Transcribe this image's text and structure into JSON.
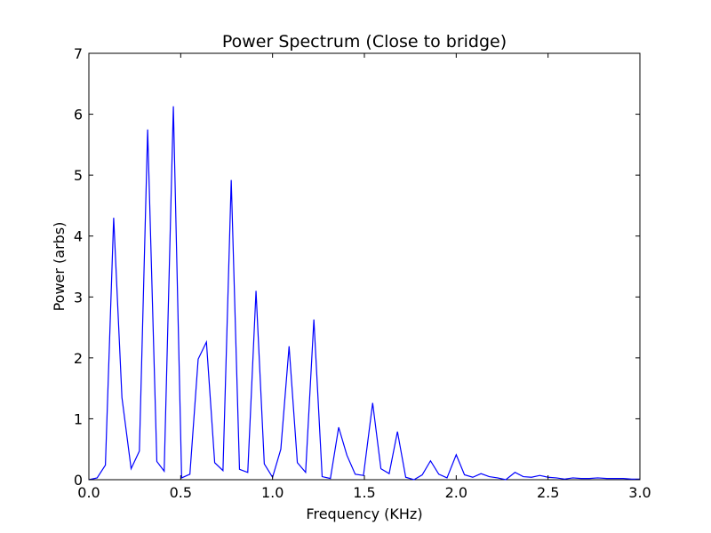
{
  "chart_data": {
    "type": "line",
    "title": "Power Spectrum (Close to bridge)",
    "xlabel": "Frequency (KHz)",
    "ylabel": "Power (arbs)",
    "xlim": [
      0,
      3.0
    ],
    "ylim": [
      0,
      7
    ],
    "xticks": [
      "0.0",
      "0.5",
      "1.0",
      "1.5",
      "2.0",
      "2.5",
      "3.0"
    ],
    "yticks": [
      "0",
      "1",
      "2",
      "3",
      "4",
      "5",
      "6",
      "7"
    ],
    "grid": false,
    "legend": "none",
    "line_color": "#0000ff",
    "series": [
      {
        "x": [
          0.0,
          0.045,
          0.09,
          0.135,
          0.18,
          0.23,
          0.275,
          0.32,
          0.37,
          0.41,
          0.46,
          0.505,
          0.55,
          0.595,
          0.64,
          0.685,
          0.73,
          0.775,
          0.82,
          0.865,
          0.91,
          0.955,
          1.0,
          1.045,
          1.09,
          1.135,
          1.18,
          1.225,
          1.27,
          1.315,
          1.36,
          1.405,
          1.45,
          1.495,
          1.545,
          1.59,
          1.635,
          1.68,
          1.725,
          1.77,
          1.815,
          1.86,
          1.905,
          1.95,
          2.0,
          2.045,
          2.09,
          2.135,
          2.18,
          2.225,
          2.27,
          2.32,
          2.365,
          2.41,
          2.455,
          2.5,
          2.545,
          2.59,
          2.635,
          2.68,
          2.725,
          2.77,
          2.82,
          2.865,
          2.91,
          2.955,
          3.0
        ],
        "y": [
          0.0,
          0.03,
          0.24,
          4.3,
          1.35,
          0.18,
          0.47,
          5.75,
          0.3,
          0.14,
          6.13,
          0.03,
          0.09,
          1.98,
          2.26,
          0.28,
          0.15,
          4.92,
          0.17,
          0.12,
          3.1,
          0.26,
          0.04,
          0.5,
          2.19,
          0.28,
          0.12,
          2.63,
          0.05,
          0.02,
          0.86,
          0.4,
          0.09,
          0.07,
          1.26,
          0.18,
          0.1,
          0.79,
          0.04,
          0.0,
          0.08,
          0.31,
          0.09,
          0.03,
          0.41,
          0.08,
          0.04,
          0.1,
          0.05,
          0.03,
          0.0,
          0.12,
          0.05,
          0.04,
          0.07,
          0.04,
          0.03,
          0.01,
          0.03,
          0.02,
          0.02,
          0.03,
          0.02,
          0.02,
          0.02,
          0.01,
          0.01
        ]
      }
    ]
  }
}
